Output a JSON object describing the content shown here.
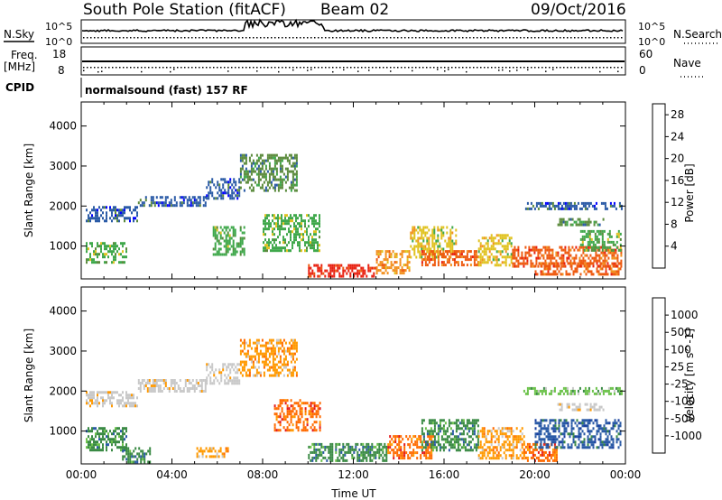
{
  "header": {
    "station": "South Pole Station (fitACF)",
    "beam": "Beam 02",
    "date": "09/Oct/2016"
  },
  "noise_panel": {
    "left_label": "N.Sky",
    "right_label": "N.Search",
    "left_ticks": [
      "10^5",
      "10^0"
    ],
    "right_ticks": [
      "10^5",
      "10^0"
    ]
  },
  "freq_panel": {
    "left_label_line1": "Freq.",
    "left_label_line2": "[MHz]",
    "right_label": "Nave",
    "left_ticks": [
      "18",
      "8"
    ],
    "right_ticks": [
      "60",
      "0"
    ]
  },
  "cpid": {
    "label": "CPID",
    "program": "normalsound (fast) 157 RF"
  },
  "colors": {
    "power": [
      "#0000ff",
      "#2a5aa6",
      "#5b8a3c",
      "#3fa84b",
      "#e0c220",
      "#f2901e",
      "#ee5a10",
      "#e82010"
    ],
    "velocity": [
      "#e41a1c",
      "#ff6a00",
      "#ff9900",
      "#c8c8c8",
      "#c8c8c8",
      "#6cc24a",
      "#3a8a44",
      "#2a5aa6",
      "#1a3fa0"
    ]
  },
  "chart_data": [
    {
      "type": "heatmap",
      "panel": "power",
      "xlabel": "",
      "ylabel": "Slant Range [km]",
      "xlim": [
        0,
        24
      ],
      "ylim": [
        180,
        4600
      ],
      "y_ticks": [
        "1000",
        "2000",
        "3000",
        "4000"
      ],
      "colorbar": {
        "label": "Power [dB]",
        "ticks": [
          "4",
          "8",
          "12",
          "16",
          "20",
          "24",
          "28"
        ],
        "range": [
          0,
          30
        ]
      },
      "echo_regions": [
        {
          "x": [
            0.2,
            2.5
          ],
          "y": [
            1600,
            2000
          ],
          "level": 1
        },
        {
          "x": [
            2.5,
            5.5
          ],
          "y": [
            2000,
            2250
          ],
          "level": 1
        },
        {
          "x": [
            5.5,
            7.0
          ],
          "y": [
            2200,
            2700
          ],
          "level": 1
        },
        {
          "x": [
            7.0,
            9.5
          ],
          "y": [
            2400,
            3300
          ],
          "level": 2
        },
        {
          "x": [
            0.2,
            2.0
          ],
          "y": [
            600,
            1100
          ],
          "level": 3
        },
        {
          "x": [
            5.8,
            7.2
          ],
          "y": [
            800,
            1500
          ],
          "level": 3
        },
        {
          "x": [
            8.0,
            10.5
          ],
          "y": [
            900,
            1800
          ],
          "level": 3
        },
        {
          "x": [
            10.0,
            13.0
          ],
          "y": [
            250,
            550
          ],
          "level": 7
        },
        {
          "x": [
            13.0,
            14.5
          ],
          "y": [
            300,
            900
          ],
          "level": 5
        },
        {
          "x": [
            14.5,
            16.5
          ],
          "y": [
            700,
            1500
          ],
          "level": 4
        },
        {
          "x": [
            15.0,
            17.5
          ],
          "y": [
            500,
            900
          ],
          "level": 6
        },
        {
          "x": [
            17.5,
            19.0
          ],
          "y": [
            500,
            1300
          ],
          "level": 4
        },
        {
          "x": [
            19.0,
            23.8
          ],
          "y": [
            500,
            1000
          ],
          "level": 6
        },
        {
          "x": [
            20.0,
            23.8
          ],
          "y": [
            300,
            600
          ],
          "level": 6
        },
        {
          "x": [
            21.0,
            23.0
          ],
          "y": [
            1500,
            1700
          ],
          "level": 2
        },
        {
          "x": [
            19.5,
            23.8
          ],
          "y": [
            1900,
            2100
          ],
          "level": 1
        },
        {
          "x": [
            22.0,
            23.8
          ],
          "y": [
            900,
            1400
          ],
          "level": 3
        }
      ]
    },
    {
      "type": "heatmap",
      "panel": "velocity",
      "xlabel": "Time UT",
      "ylabel": "Slant Range [km]",
      "xlim": [
        0,
        24
      ],
      "ylim": [
        180,
        4600
      ],
      "x_ticks": [
        "00:00",
        "04:00",
        "08:00",
        "12:00",
        "16:00",
        "20:00",
        "00:00"
      ],
      "y_ticks": [
        "1000",
        "2000",
        "3000",
        "4000"
      ],
      "colorbar": {
        "label": "Velocity [m s^-1]",
        "ticks": [
          "-1000",
          "-500",
          "-100",
          "-25",
          "25",
          "100",
          "500",
          "1000"
        ],
        "range": [
          -1200,
          1200
        ]
      },
      "echo_regions": [
        {
          "x": [
            0.2,
            2.5
          ],
          "y": [
            1600,
            2000
          ],
          "level": 3
        },
        {
          "x": [
            2.5,
            5.5
          ],
          "y": [
            2000,
            2300
          ],
          "level": 3
        },
        {
          "x": [
            5.5,
            7.0
          ],
          "y": [
            2200,
            2700
          ],
          "level": 3
        },
        {
          "x": [
            7.0,
            9.5
          ],
          "y": [
            2400,
            3300
          ],
          "level": 2
        },
        {
          "x": [
            0.2,
            2.0
          ],
          "y": [
            500,
            1100
          ],
          "level": 6
        },
        {
          "x": [
            1.8,
            3.0
          ],
          "y": [
            250,
            600
          ],
          "level": 6
        },
        {
          "x": [
            5.0,
            6.5
          ],
          "y": [
            350,
            600
          ],
          "level": 2
        },
        {
          "x": [
            8.5,
            10.5
          ],
          "y": [
            1000,
            1800
          ],
          "level": 1
        },
        {
          "x": [
            10.0,
            13.5
          ],
          "y": [
            250,
            700
          ],
          "level": 6
        },
        {
          "x": [
            13.5,
            15.5
          ],
          "y": [
            300,
            900
          ],
          "level": 1
        },
        {
          "x": [
            15.0,
            17.5
          ],
          "y": [
            500,
            1300
          ],
          "level": 6
        },
        {
          "x": [
            17.5,
            19.5
          ],
          "y": [
            350,
            1100
          ],
          "level": 2
        },
        {
          "x": [
            19.5,
            21.0
          ],
          "y": [
            250,
            700
          ],
          "level": 1
        },
        {
          "x": [
            20.0,
            23.8
          ],
          "y": [
            600,
            1300
          ],
          "level": 7
        },
        {
          "x": [
            21.0,
            23.0
          ],
          "y": [
            1500,
            1700
          ],
          "level": 3
        },
        {
          "x": [
            19.5,
            23.8
          ],
          "y": [
            1900,
            2100
          ],
          "level": 5
        }
      ]
    }
  ]
}
